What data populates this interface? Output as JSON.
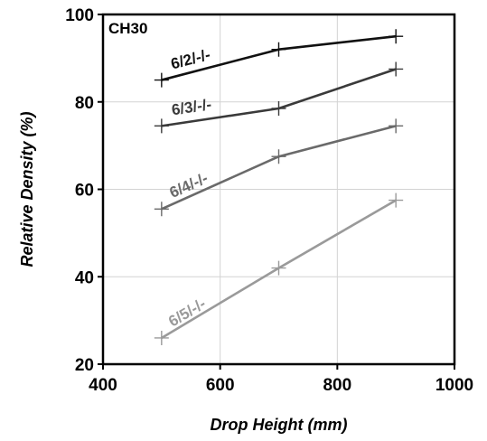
{
  "chart_data": {
    "type": "line",
    "panel_label": "CH30",
    "xlabel": "Drop Height (mm)",
    "ylabel": "Relative Density (%)",
    "xlim": [
      400,
      1000
    ],
    "ylim": [
      20,
      100
    ],
    "xticks": [
      400,
      600,
      800,
      1000
    ],
    "yticks": [
      20,
      40,
      60,
      80,
      100
    ],
    "grid": true,
    "series": [
      {
        "name": "6/2/-/-",
        "color": "#111111",
        "x": [
          500,
          700,
          900
        ],
        "y": [
          85.0,
          92.0,
          95.0
        ]
      },
      {
        "name": "6/3/-/-",
        "color": "#3a3a3a",
        "x": [
          500,
          700,
          900
        ],
        "y": [
          74.5,
          78.5,
          87.5
        ]
      },
      {
        "name": "6/4/-/-",
        "color": "#6a6a6a",
        "x": [
          500,
          700,
          900
        ],
        "y": [
          55.5,
          67.5,
          74.5
        ]
      },
      {
        "name": "6/5/-/-",
        "color": "#9a9a9a",
        "x": [
          500,
          700,
          900
        ],
        "y": [
          26.0,
          42.0,
          57.5
        ]
      }
    ]
  }
}
